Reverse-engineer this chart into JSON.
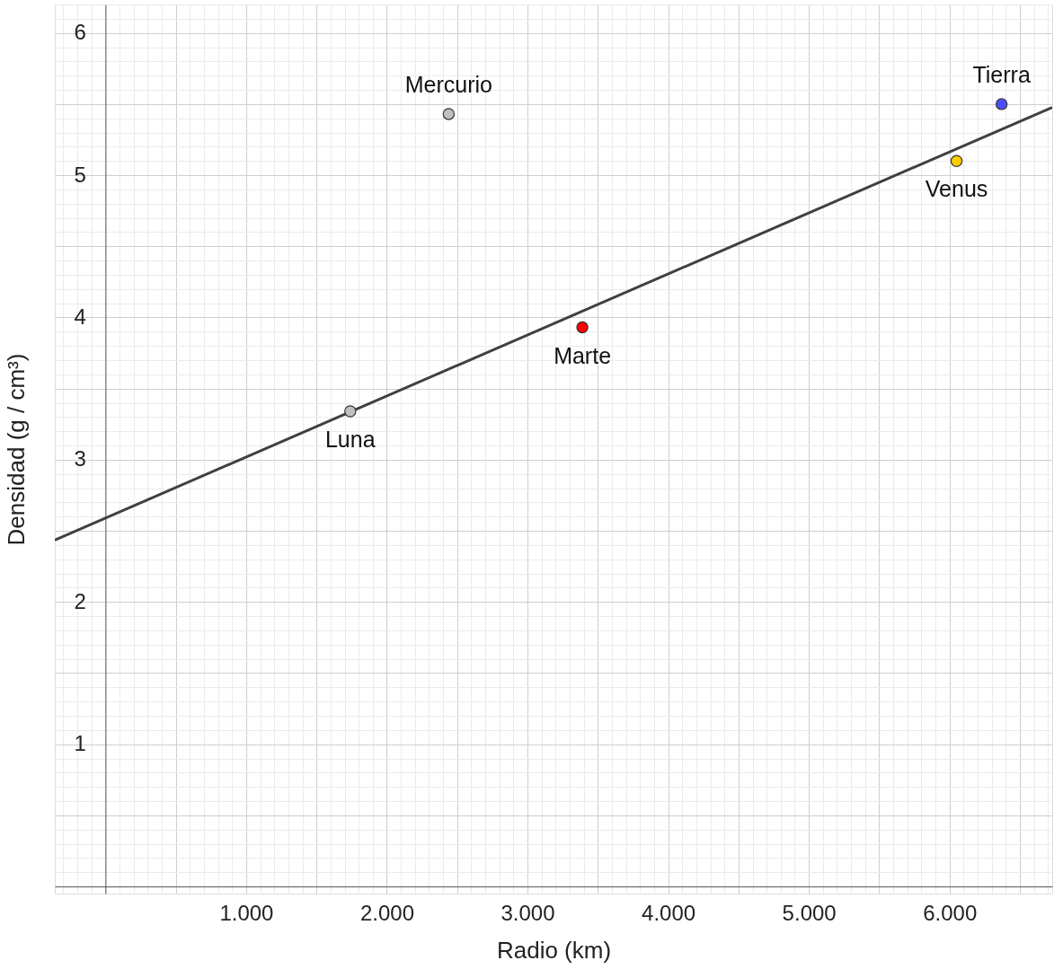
{
  "chart_data": {
    "type": "scatter",
    "xlabel": "Radio (km)",
    "ylabel": "Densidad (g / cm³)",
    "xlim": [
      -360,
      6730
    ],
    "ylim": [
      -0.05,
      6.2
    ],
    "xticks": [
      {
        "value": 500,
        "label": null
      },
      {
        "value": 1000,
        "label": "1.000"
      },
      {
        "value": 1500,
        "label": null
      },
      {
        "value": 2000,
        "label": "2.000"
      },
      {
        "value": 2500,
        "label": null
      },
      {
        "value": 3000,
        "label": "3.000"
      },
      {
        "value": 3500,
        "label": null
      },
      {
        "value": 4000,
        "label": "4.000"
      },
      {
        "value": 4500,
        "label": null
      },
      {
        "value": 5000,
        "label": "5.000"
      },
      {
        "value": 5500,
        "label": null
      },
      {
        "value": 6000,
        "label": "6.000"
      },
      {
        "value": 6500,
        "label": null
      }
    ],
    "yticks": [
      {
        "value": 0.5,
        "label": null
      },
      1,
      {
        "value": 1.5,
        "label": null
      },
      2,
      {
        "value": 2.5,
        "label": null
      },
      3,
      {
        "value": 3.5,
        "label": null
      },
      4,
      {
        "value": 4.5,
        "label": null
      },
      5,
      {
        "value": 5.5,
        "label": null
      },
      6
    ],
    "grid": true,
    "marker": "circle",
    "legend": false,
    "series": [
      {
        "type": "line",
        "marker": "none",
        "color": "#404040",
        "x": [
          -360,
          6730
        ],
        "values": [
          2.435,
          5.477
        ]
      },
      {
        "x": [
          1740,
          2440,
          3390,
          6050,
          6370
        ],
        "values": [
          3.34,
          5.43,
          3.93,
          5.1,
          5.5
        ],
        "colors": [
          "#c0c0c0",
          "#c0c0c0",
          "#ff0000",
          "#ffcc00",
          "#4d4dff"
        ]
      }
    ],
    "annotations": [
      {
        "text": "Luna",
        "x": 1740,
        "y": 3.34
      },
      {
        "text": "Mercurio",
        "x": 2440,
        "y": 5.43
      },
      {
        "text": "Marte",
        "x": 3390,
        "y": 3.93
      },
      {
        "text": "Venus",
        "x": 6050,
        "y": 5.1
      },
      {
        "text": "Tierra",
        "x": 6370,
        "y": 5.5
      }
    ]
  }
}
